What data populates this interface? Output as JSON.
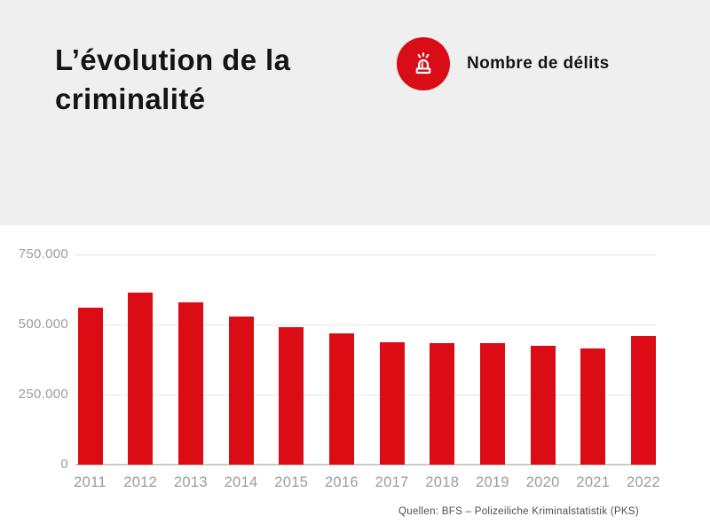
{
  "header": {
    "title": "L’évolution de la criminalité",
    "legend": {
      "icon": "siren-icon",
      "label": "Nombre de délits",
      "icon_bg": "#d90d17",
      "icon_color": "#ffffff"
    }
  },
  "chart_data": {
    "type": "bar",
    "title": "L’évolution de la criminalité",
    "legend_entries": [
      "Nombre de délits"
    ],
    "legend_position": "top-right",
    "categories": [
      "2011",
      "2012",
      "2013",
      "2014",
      "2015",
      "2016",
      "2017",
      "2018",
      "2019",
      "2020",
      "2021",
      "2022"
    ],
    "values": [
      560000,
      615000,
      578000,
      528000,
      490000,
      468000,
      438000,
      434000,
      434000,
      423000,
      416000,
      460000
    ],
    "bar_color": "#dc0c15",
    "xlabel": "",
    "ylabel": "",
    "ylim": [
      0,
      790000
    ],
    "grid": true,
    "yticks": [
      {
        "value": 750000,
        "label": "750.000"
      },
      {
        "value": 500000,
        "label": "500.000"
      },
      {
        "value": 250000,
        "label": "250.000"
      },
      {
        "value": 0,
        "label": "0"
      }
    ]
  },
  "footer": {
    "source": "Quellen: BFS – Polizeiliche Kriminalstatistik (PKS)"
  }
}
